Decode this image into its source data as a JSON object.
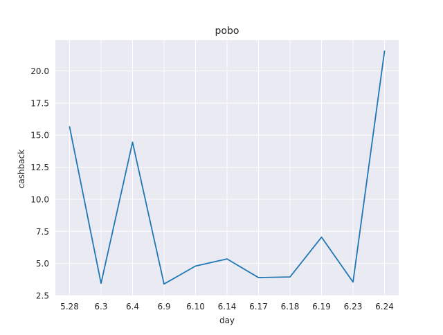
{
  "chart_data": {
    "type": "line",
    "title": "pobo",
    "xlabel": "day",
    "ylabel": "cashback",
    "categories": [
      "5.28",
      "6.3",
      "6.4",
      "6.9",
      "6.10",
      "6.14",
      "6.17",
      "6.18",
      "6.19",
      "6.23",
      "6.24"
    ],
    "series": [
      {
        "values": [
          15.65,
          3.45,
          14.45,
          3.4,
          4.8,
          5.35,
          3.9,
          3.95,
          7.05,
          3.55,
          21.55
        ]
      }
    ],
    "ylim": [
      2.5,
      22.4
    ],
    "yticks": [
      "2.5",
      "5.0",
      "7.5",
      "10.0",
      "12.5",
      "15.0",
      "17.5",
      "20.0"
    ],
    "grid": true,
    "colors": {
      "line": "#1f77b4",
      "plot_background": "#eaeaf2",
      "grid": "#ffffff",
      "text": "#262626"
    }
  }
}
